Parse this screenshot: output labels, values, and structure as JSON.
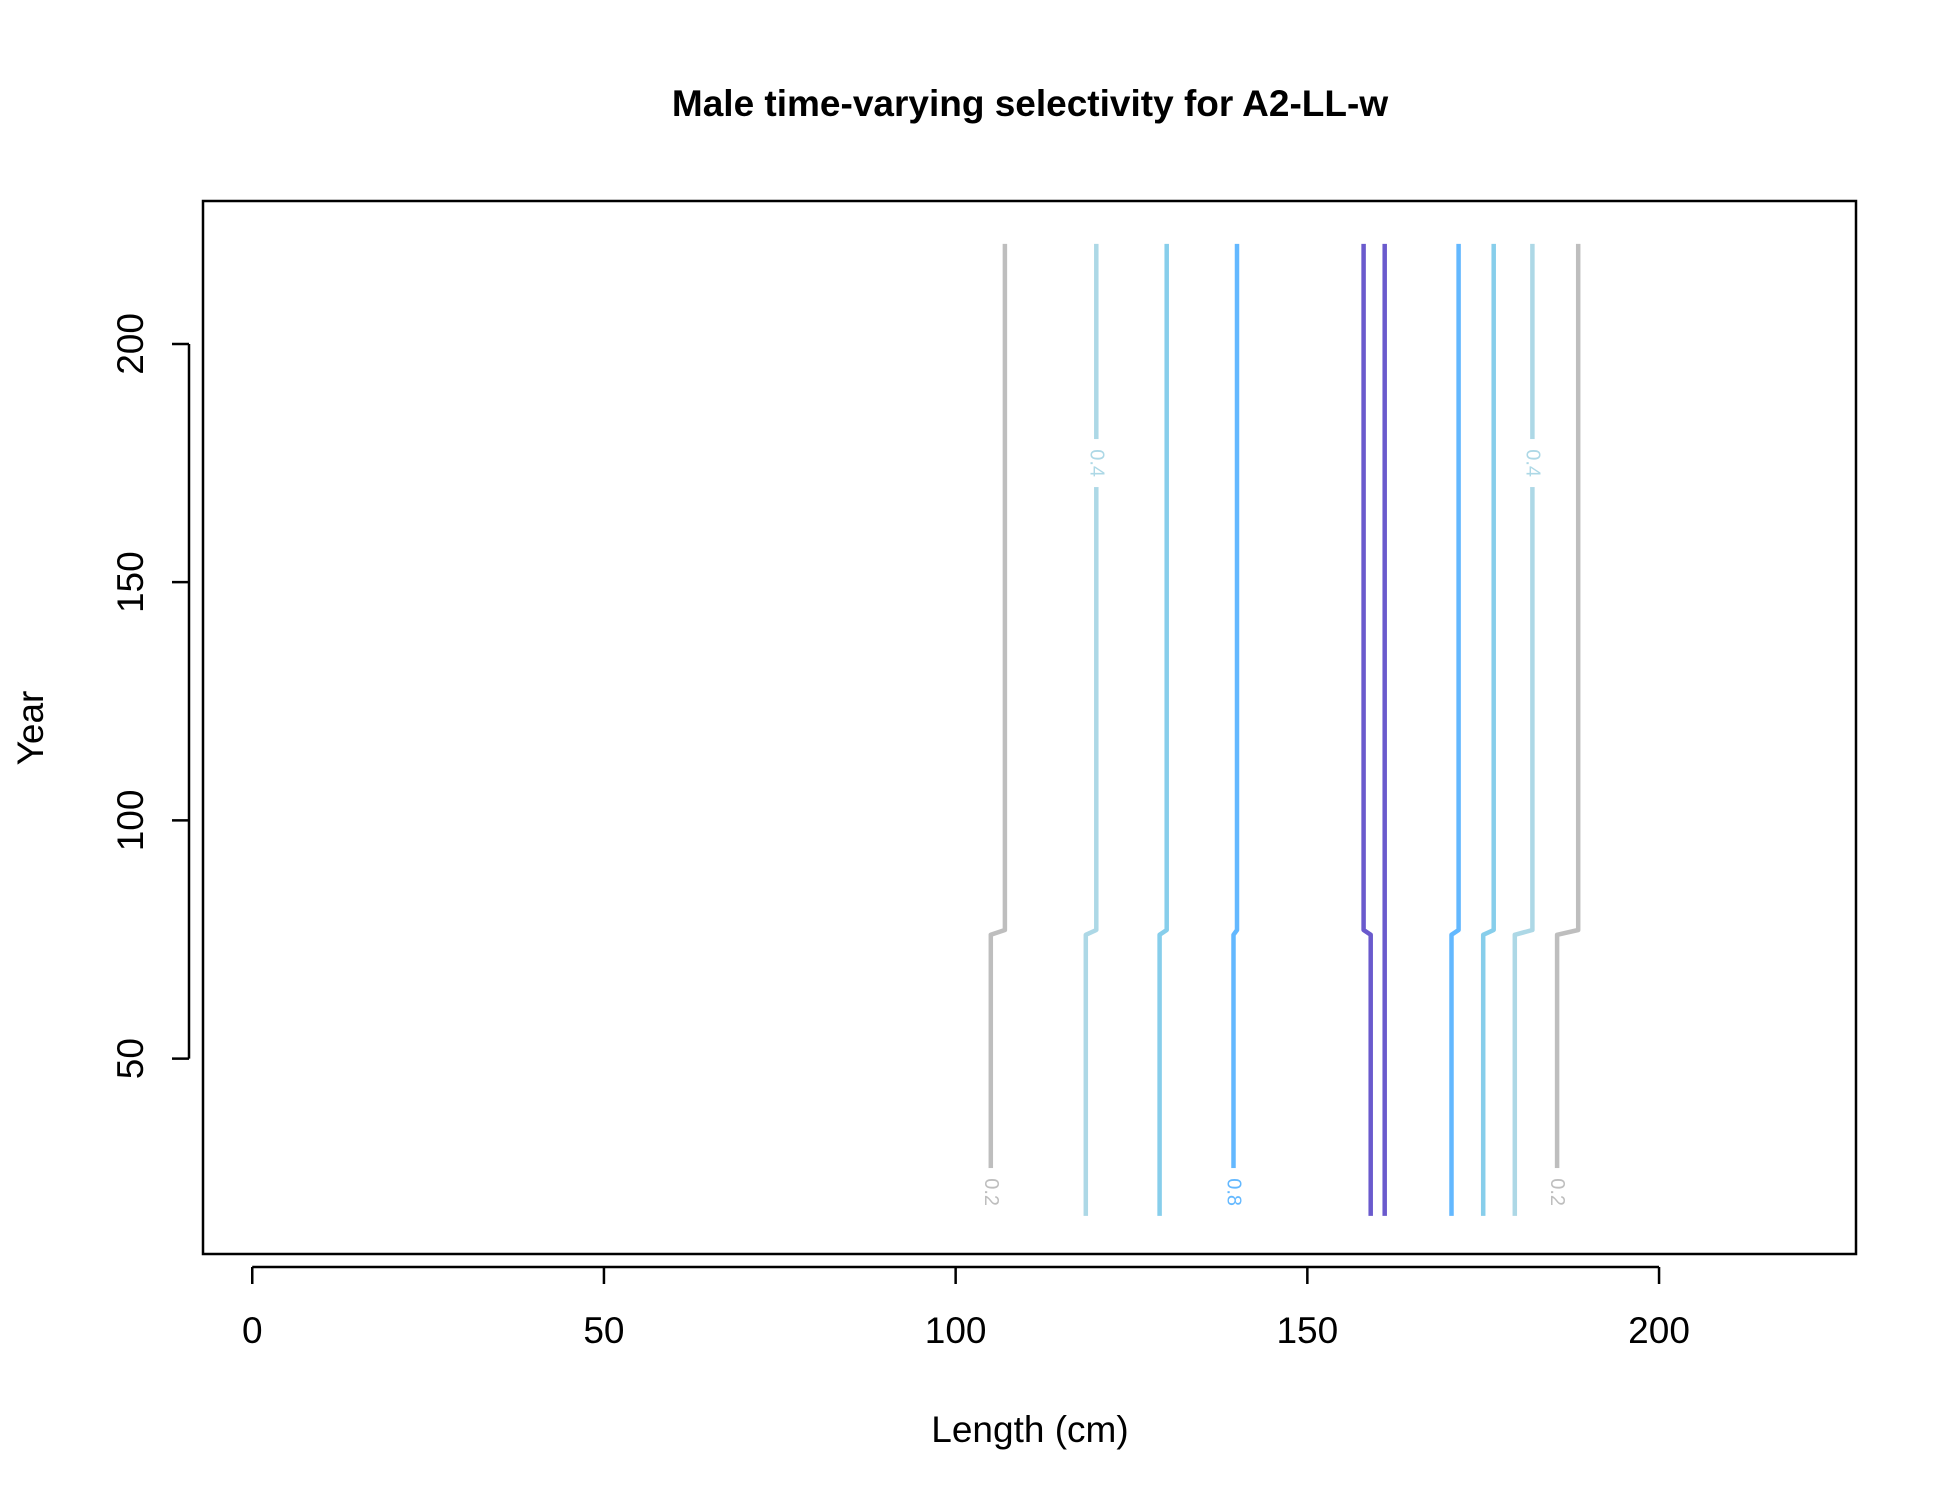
{
  "chart_data": {
    "type": "contour",
    "title": "Male time-varying selectivity for A2-LL-w",
    "xlabel": "Length (cm)",
    "ylabel": "Year",
    "xlim": [
      -7,
      228
    ],
    "ylim": [
      9,
      230
    ],
    "xticks": [
      0,
      50,
      100,
      150,
      200
    ],
    "yticks": [
      50,
      100,
      150,
      200
    ],
    "grid": false,
    "legend": "none",
    "y_range": [
      17,
      221
    ],
    "step_year_low": 76,
    "step_year_high": 77,
    "contours": [
      {
        "level": 0.2,
        "color": "#bebebe",
        "x_before": 105,
        "x_after": 107,
        "label": "0.2",
        "label_y": 22
      },
      {
        "level": 0.4,
        "color": "#add8e6",
        "x_before": 118.5,
        "x_after": 120,
        "label": "0.4",
        "label_y": 175
      },
      {
        "level": 0.6,
        "color": "#87ceeb",
        "x_before": 129,
        "x_after": 130,
        "label": "",
        "label_y": null
      },
      {
        "level": 0.8,
        "color": "#63b8ff",
        "x_before": 139.5,
        "x_after": 140,
        "label": "0.8",
        "label_y": 22
      },
      {
        "level": 1.0,
        "color": "#6a5acd",
        "x_before": 159,
        "x_after": 158,
        "label": "",
        "label_y": null
      },
      {
        "level": 1.0,
        "color": "#6a5acd",
        "x_before": 161,
        "x_after": 161,
        "label": "",
        "label_y": null
      },
      {
        "level": 0.8,
        "color": "#63b8ff",
        "x_before": 170.5,
        "x_after": 171.5,
        "label": "",
        "label_y": null
      },
      {
        "level": 0.6,
        "color": "#87ceeb",
        "x_before": 175,
        "x_after": 176.5,
        "label": "",
        "label_y": null
      },
      {
        "level": 0.4,
        "color": "#add8e6",
        "x_before": 179.5,
        "x_after": 182,
        "label": "0.4",
        "label_y": 175
      },
      {
        "level": 0.2,
        "color": "#bebebe",
        "x_before": 185.5,
        "x_after": 188.5,
        "label": "0.2",
        "label_y": 22
      }
    ]
  }
}
